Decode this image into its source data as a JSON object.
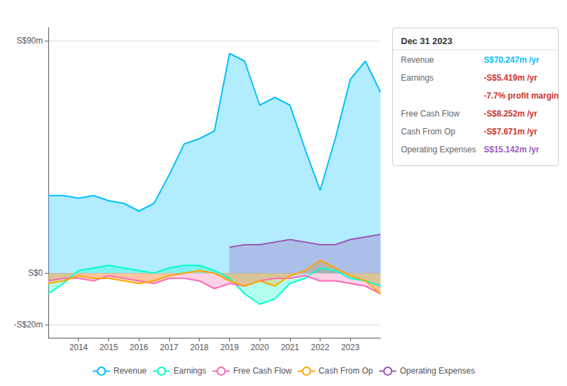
{
  "chart_data": {
    "type": "area",
    "x": [
      2013.0,
      2013.5,
      2014.0,
      2014.5,
      2015.0,
      2015.5,
      2016.0,
      2016.5,
      2017.0,
      2017.5,
      2018.0,
      2018.5,
      2019.0,
      2019.5,
      2020.0,
      2020.5,
      2021.0,
      2021.5,
      2022.0,
      2022.5,
      2023.0,
      2023.5,
      2024.0
    ],
    "series": [
      {
        "name": "Revenue",
        "color": "#00bfff",
        "values": [
          30,
          30,
          29,
          30,
          28,
          27,
          24,
          27,
          38,
          50,
          52,
          55,
          85,
          82,
          65,
          68,
          65,
          48,
          32,
          52,
          75,
          82,
          70
        ]
      },
      {
        "name": "Earnings",
        "color": "#00ffcc",
        "values": [
          -8,
          -4,
          1,
          2,
          3,
          2,
          1,
          0,
          2,
          3,
          3,
          1,
          -2,
          -8,
          -12,
          -10,
          -4,
          -2,
          2,
          1,
          -2,
          -3,
          -5
        ]
      },
      {
        "name": "Free Cash Flow",
        "color": "#ff69b4",
        "values": [
          -3,
          -2,
          -2,
          -3,
          -1,
          -2,
          -3,
          -4,
          -2,
          -2,
          -3,
          -6,
          -4,
          -5,
          -3,
          -2,
          -2,
          -1,
          -3,
          -3,
          -4,
          -5,
          -8
        ]
      },
      {
        "name": "Cash From Op",
        "color": "#ffa500",
        "values": [
          -4,
          -3,
          -1,
          -2,
          -2,
          -3,
          -4,
          -3,
          -1,
          0,
          1,
          0,
          -3,
          -5,
          -3,
          -5,
          -1,
          1,
          5,
          2,
          -1,
          -3,
          -8
        ]
      },
      {
        "name": "Operating Expenses",
        "color": "#9b59b6",
        "values": [
          null,
          null,
          null,
          null,
          null,
          null,
          null,
          null,
          null,
          null,
          null,
          null,
          10,
          11,
          11,
          12,
          13,
          12,
          11,
          11,
          13,
          14,
          15
        ]
      }
    ],
    "xlim": [
      2013,
      2024
    ],
    "xticks": [
      2014,
      2015,
      2016,
      2017,
      2018,
      2019,
      2020,
      2021,
      2022,
      2023
    ],
    "ylim": [
      -25,
      95
    ],
    "yticks": [
      {
        "value": -20,
        "label": "-S$20m"
      },
      {
        "value": 0,
        "label": "S$0"
      },
      {
        "value": 90,
        "label": "S$90m"
      }
    ],
    "grid": true,
    "legend": "bottom",
    "annotations": {
      "title": "Dec 31 2023",
      "rows": [
        {
          "label": "Revenue",
          "value": "S$70.247m /yr",
          "color": "#00bfff"
        },
        {
          "label": "Earnings",
          "value": "-S$5.419m /yr",
          "color": "#cc3333"
        },
        {
          "value": "-7.7% profit margin",
          "color": "#cc3333"
        },
        {
          "label": "Free Cash Flow",
          "value": "-S$8.252m /yr",
          "color": "#cc3333"
        },
        {
          "label": "Cash From Op",
          "value": "-S$7.671m /yr",
          "color": "#cc3333"
        },
        {
          "label": "Operating Expenses",
          "value": "S$15.142m /yr",
          "color": "#9b59b6"
        }
      ]
    }
  }
}
